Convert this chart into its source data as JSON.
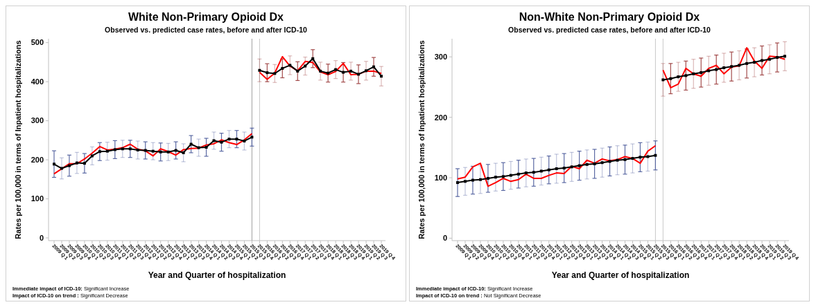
{
  "chart_data": [
    {
      "type": "line",
      "title": "White Non-Primary Opioid Dx",
      "subtitle": "Observed vs. predicted case rates, before and after ICD-10",
      "xlabel": "Year and Quarter of hospitalization",
      "ylabel": "Rates per 100,000 in terms of Inpatient hospitalizations",
      "annotations": [
        "Immediate impact of ICD-10:  Significant Increase",
        "Impact of ICD-10 on trend :  Significant Decrease"
      ],
      "categories": [
        "2009 Q 1",
        "2009 Q 2",
        "2009 Q 3",
        "2009 Q 4",
        "2010 Q 1",
        "2010 Q 2",
        "2010 Q 3",
        "2010 Q 4",
        "2011 Q 1",
        "2011 Q 2",
        "2011 Q 3",
        "2011 Q 4",
        "2012 Q 1",
        "2012 Q 2",
        "2012 Q 3",
        "2012 Q 4",
        "2013 Q 1",
        "2013 Q 2",
        "2013 Q 3",
        "2013 Q 4",
        "2014 Q 1",
        "2014 Q 2",
        "2014 Q 3",
        "2014 Q 4",
        "2015 Q 1",
        "2015 Q 2",
        "2015 Q 3",
        "2015 Q 4",
        "2016 Q 1",
        "2016 Q 2",
        "2016 Q 3",
        "2016 Q 4",
        "2017 Q 1",
        "2017 Q 2",
        "2017 Q 3",
        "2017 Q 4",
        "2018 Q 1",
        "2018 Q 2",
        "2018 Q 3",
        "2018 Q 4",
        "2019 Q 1",
        "2019 Q 2",
        "2019 Q 3",
        "2019 Q 4"
      ],
      "ylim": [
        -7,
        510
      ],
      "yticks": [
        0,
        100,
        200,
        300,
        400,
        500
      ],
      "grid": false,
      "ref_lines": [
        {
          "axis": "x",
          "value": "2015 Q 3",
          "color": "#a0a0a0"
        },
        {
          "axis": "x",
          "value": "2015 Q 4",
          "color": "#c8c8c8"
        }
      ],
      "series": [
        {
          "color": "#ff0000",
          "marker": "none",
          "values": [
            164,
            177,
            190,
            190,
            202,
            217,
            234,
            225,
            227,
            231,
            240,
            227,
            223,
            210,
            228,
            221,
            212,
            226,
            229,
            230,
            238,
            241,
            251,
            244,
            239,
            251,
            267,
            null,
            null,
            null,
            null,
            null,
            null,
            null,
            null,
            null,
            null,
            null,
            null,
            null,
            null,
            null,
            null,
            null
          ]
        },
        {
          "color": "#ff0000",
          "marker": "none",
          "values": [
            null,
            null,
            null,
            null,
            null,
            null,
            null,
            null,
            null,
            null,
            null,
            null,
            null,
            null,
            null,
            null,
            null,
            null,
            null,
            null,
            null,
            null,
            null,
            null,
            null,
            null,
            null,
            424,
            406,
            422,
            464,
            440,
            428,
            452,
            449,
            425,
            418,
            426,
            447,
            418,
            419,
            427,
            427,
            421
          ]
        },
        {
          "color": "#000000",
          "marker": "square",
          "values": [
            189,
            178,
            185,
            192,
            191,
            210,
            221,
            222,
            226,
            228,
            228,
            225,
            224,
            222,
            220,
            220,
            224,
            218,
            240,
            231,
            232,
            249,
            245,
            253,
            253,
            248,
            258,
            null,
            null,
            null,
            null,
            null,
            null,
            null,
            null,
            null,
            null,
            null,
            null,
            null,
            null,
            null,
            null,
            null
          ],
          "errors": [
            34,
            27,
            27,
            27,
            25,
            23,
            23,
            23,
            23,
            22,
            22,
            23,
            22,
            22,
            23,
            22,
            22,
            23,
            22,
            22,
            23,
            22,
            23,
            22,
            22,
            23,
            23,
            null,
            null,
            null,
            null,
            null,
            null,
            null,
            null,
            null,
            null,
            null,
            null,
            null,
            null,
            null,
            null,
            null
          ]
        },
        {
          "color": "#000000",
          "marker": "square",
          "values": [
            null,
            null,
            null,
            null,
            null,
            null,
            null,
            null,
            null,
            null,
            null,
            null,
            null,
            null,
            null,
            null,
            null,
            null,
            null,
            null,
            null,
            null,
            null,
            null,
            null,
            null,
            null,
            429,
            423,
            421,
            434,
            442,
            427,
            440,
            459,
            427,
            422,
            431,
            424,
            427,
            419,
            428,
            438,
            414
          ],
          "errors": [
            null,
            null,
            null,
            null,
            null,
            null,
            null,
            null,
            null,
            null,
            null,
            null,
            null,
            null,
            null,
            null,
            null,
            null,
            null,
            null,
            null,
            null,
            null,
            null,
            null,
            null,
            null,
            29,
            23,
            23,
            24,
            24,
            24,
            23,
            23,
            23,
            23,
            23,
            25,
            23,
            24,
            24,
            24,
            25
          ]
        }
      ]
    },
    {
      "type": "line",
      "title": "Non-White Non-Primary Opioid Dx",
      "subtitle": "Observed vs. predicted case rates, before and after ICD-10",
      "xlabel": "Year and Quarter of hospitalization",
      "ylabel": "Rates per 100,000 in terms of Inpatient hospitalizations",
      "annotations": [
        "Immediate impact of ICD-10:  Significant Increase",
        "Impact of ICD-10 on trend :  Not Significant Decrease"
      ],
      "categories": [
        "2009 Q 1",
        "2009 Q 2",
        "2009 Q 3",
        "2009 Q 4",
        "2010 Q 1",
        "2010 Q 2",
        "2010 Q 3",
        "2010 Q 4",
        "2011 Q 1",
        "2011 Q 2",
        "2011 Q 3",
        "2011 Q 4",
        "2012 Q 1",
        "2012 Q 2",
        "2012 Q 3",
        "2012 Q 4",
        "2013 Q 1",
        "2013 Q 2",
        "2013 Q 3",
        "2013 Q 4",
        "2014 Q 1",
        "2014 Q 2",
        "2014 Q 3",
        "2014 Q 4",
        "2015 Q 1",
        "2015 Q 2",
        "2015 Q 3",
        "2015 Q 4",
        "2016 Q 1",
        "2016 Q 2",
        "2016 Q 3",
        "2016 Q 4",
        "2017 Q 1",
        "2017 Q 2",
        "2017 Q 3",
        "2017 Q 4",
        "2018 Q 1",
        "2018 Q 2",
        "2018 Q 3",
        "2018 Q 4",
        "2019 Q 1",
        "2019 Q 2",
        "2019 Q 3",
        "2019 Q 4"
      ],
      "ylim": [
        -4,
        330
      ],
      "yticks": [
        0,
        100,
        200,
        300
      ],
      "grid": false,
      "ref_lines": [
        {
          "axis": "x",
          "value": "2015 Q 3",
          "color": "#c8c8c8"
        },
        {
          "axis": "x",
          "value": "2015 Q 4",
          "color": "#c8c8c8"
        }
      ],
      "series": [
        {
          "color": "#ff0000",
          "marker": "none",
          "values": [
            98,
            101,
            118,
            124,
            86,
            92,
            99,
            94,
            97,
            106,
            99,
            99,
            104,
            108,
            107,
            119,
            115,
            129,
            124,
            131,
            128,
            130,
            135,
            132,
            124,
            144,
            153,
            null,
            null,
            null,
            null,
            null,
            null,
            null,
            null,
            null,
            null,
            null,
            null,
            null,
            null,
            null,
            null,
            null
          ]
        },
        {
          "color": "#ff0000",
          "marker": "none",
          "values": [
            null,
            null,
            null,
            null,
            null,
            null,
            null,
            null,
            null,
            null,
            null,
            null,
            null,
            null,
            null,
            null,
            null,
            null,
            null,
            null,
            null,
            null,
            null,
            null,
            null,
            null,
            null,
            278,
            249,
            255,
            281,
            272,
            268,
            281,
            286,
            272,
            283,
            285,
            315,
            293,
            281,
            301,
            300,
            296
          ]
        },
        {
          "color": "#000000",
          "marker": "square",
          "values": [
            92,
            94,
            96,
            97,
            99,
            101,
            102,
            104,
            106,
            108,
            109,
            111,
            113,
            115,
            116,
            118,
            120,
            122,
            123,
            125,
            127,
            129,
            130,
            132,
            134,
            135,
            137,
            null,
            null,
            null,
            null,
            null,
            null,
            null,
            null,
            null,
            null,
            null,
            null,
            null,
            null,
            null,
            null,
            null
          ],
          "errors": [
            23,
            23,
            23,
            23,
            23,
            23,
            23,
            23,
            23,
            23,
            23,
            23,
            23,
            24,
            24,
            24,
            24,
            24,
            24,
            24,
            24,
            24,
            24,
            24,
            24,
            24,
            24,
            null,
            null,
            null,
            null,
            null,
            null,
            null,
            null,
            null,
            null,
            null,
            null,
            null,
            null,
            null,
            null,
            null
          ]
        },
        {
          "color": "#000000",
          "marker": "square",
          "values": [
            null,
            null,
            null,
            null,
            null,
            null,
            null,
            null,
            null,
            null,
            null,
            null,
            null,
            null,
            null,
            null,
            null,
            null,
            null,
            null,
            null,
            null,
            null,
            null,
            null,
            null,
            null,
            262,
            264,
            267,
            269,
            272,
            274,
            277,
            279,
            282,
            284,
            286,
            289,
            291,
            294,
            296,
            299,
            301
          ],
          "errors": [
            null,
            null,
            null,
            null,
            null,
            null,
            null,
            null,
            null,
            null,
            null,
            null,
            null,
            null,
            null,
            null,
            null,
            null,
            null,
            null,
            null,
            null,
            null,
            null,
            null,
            null,
            null,
            27,
            25,
            24,
            24,
            24,
            24,
            24,
            24,
            24,
            24,
            24,
            24,
            24,
            24,
            24,
            24,
            24
          ]
        }
      ]
    }
  ]
}
